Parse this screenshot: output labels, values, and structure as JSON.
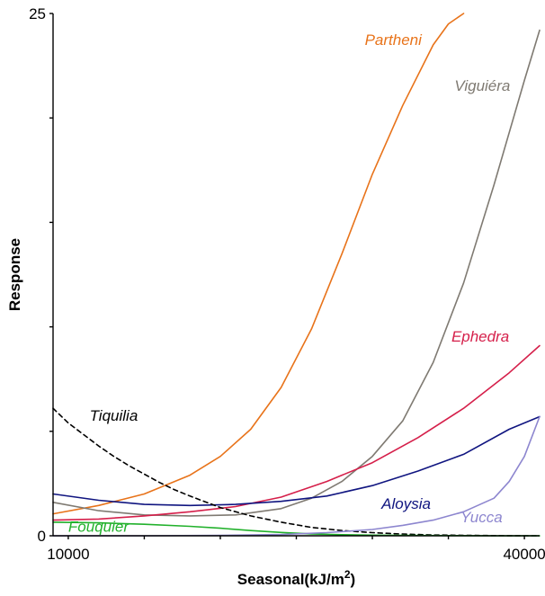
{
  "chart_data": {
    "type": "line",
    "title": "",
    "xlabel": "Seasonal(kJ/m",
    "xlabel_sup": "2",
    "xlabel_suffix": ")",
    "ylabel": "Response",
    "xlim": [
      9000,
      41000
    ],
    "ylim": [
      0,
      25
    ],
    "x_tick_labels": [
      {
        "value": 10000,
        "label": "10000"
      },
      {
        "value": 40000,
        "label": "40000"
      }
    ],
    "x_minor_ticks": [
      15000,
      20000,
      25000,
      30000,
      35000
    ],
    "y_tick_labels": [
      {
        "value": 0,
        "label": "0"
      },
      {
        "value": 25,
        "label": "25"
      }
    ],
    "y_minor_ticks": [
      5,
      10,
      15,
      20
    ],
    "grid": false,
    "legend": "none",
    "series": [
      {
        "name": "Partheni",
        "color": "#e8731a",
        "dash": false,
        "x": [
          9000,
          12000,
          15000,
          18000,
          20000,
          22000,
          24000,
          26000,
          28000,
          30000,
          32000,
          34000,
          35000,
          36000
        ],
        "y": [
          1.05,
          1.45,
          2.0,
          2.9,
          3.8,
          5.1,
          7.1,
          9.9,
          13.5,
          17.3,
          20.6,
          23.5,
          24.5,
          25.0
        ]
      },
      {
        "name": "Viguiéra",
        "color": "#7f7a72",
        "dash": false,
        "x": [
          9000,
          12000,
          15000,
          18000,
          21000,
          24000,
          26000,
          28000,
          30000,
          32000,
          34000,
          36000,
          38000,
          40000,
          41000
        ],
        "y": [
          1.6,
          1.2,
          1.0,
          0.95,
          1.0,
          1.3,
          1.8,
          2.6,
          3.8,
          5.5,
          8.3,
          12.1,
          16.8,
          21.8,
          24.2
        ]
      },
      {
        "name": "Ephedra",
        "color": "#d51f4a",
        "dash": false,
        "x": [
          9000,
          12000,
          15000,
          18000,
          21000,
          24000,
          27000,
          30000,
          33000,
          36000,
          39000,
          41000
        ],
        "y": [
          0.75,
          0.8,
          0.95,
          1.15,
          1.4,
          1.85,
          2.6,
          3.5,
          4.7,
          6.1,
          7.8,
          9.1
        ]
      },
      {
        "name": "Aloysia",
        "color": "#101580",
        "dash": false,
        "x": [
          9000,
          12000,
          15000,
          18000,
          21000,
          24000,
          27000,
          30000,
          33000,
          36000,
          39000,
          41000
        ],
        "y": [
          2.0,
          1.7,
          1.5,
          1.45,
          1.5,
          1.65,
          1.9,
          2.4,
          3.1,
          3.9,
          5.1,
          5.7
        ]
      },
      {
        "name": "Tiquilia",
        "color": "#000000",
        "dash": true,
        "x": [
          9000,
          10000,
          11000,
          12000,
          13000,
          14000,
          15000,
          16000,
          17000,
          18000,
          20000,
          22000,
          24000,
          26000,
          28000,
          30000,
          32000,
          34000,
          36000,
          38000,
          40000,
          41000
        ],
        "y": [
          6.1,
          5.4,
          4.85,
          4.3,
          3.8,
          3.35,
          2.95,
          2.55,
          2.2,
          1.9,
          1.35,
          0.95,
          0.65,
          0.4,
          0.25,
          0.15,
          0.08,
          0.04,
          0.02,
          0.01,
          0.0,
          0.0
        ]
      },
      {
        "name": "Fouquier",
        "color": "#22b12c",
        "dash": false,
        "x": [
          9000,
          12000,
          15000,
          18000,
          20000,
          22000,
          24000,
          26000,
          28000,
          30000,
          32000,
          35000,
          38000,
          41000
        ],
        "y": [
          0.65,
          0.62,
          0.55,
          0.45,
          0.36,
          0.25,
          0.16,
          0.09,
          0.05,
          0.03,
          0.02,
          0.01,
          0.0,
          0.0
        ]
      },
      {
        "name": "Yucca",
        "color": "#8d86cf",
        "dash": false,
        "x": [
          9000,
          15000,
          20000,
          24000,
          27000,
          30000,
          32000,
          34000,
          36000,
          38000,
          39000,
          40000,
          41000
        ],
        "y": [
          0.0,
          0.0,
          0.02,
          0.06,
          0.15,
          0.3,
          0.5,
          0.75,
          1.15,
          1.8,
          2.6,
          3.8,
          5.7
        ]
      }
    ],
    "labels": [
      {
        "series": "Partheni",
        "text": "Partheni",
        "x": 29500,
        "y": 23.5
      },
      {
        "series": "Viguiéra",
        "text": "Viguiéra",
        "x": 35400,
        "y": 21.3
      },
      {
        "series": "Ephedra",
        "text": "Ephedra",
        "x": 35200,
        "y": 9.3
      },
      {
        "series": "Tiquilia",
        "text": "Tiquilia",
        "x": 11400,
        "y": 5.5
      },
      {
        "series": "Aloysia",
        "text": "Aloysia",
        "x": 30600,
        "y": 1.3
      },
      {
        "series": "Yucca",
        "text": "Yucca",
        "x": 35800,
        "y": 0.65
      },
      {
        "series": "Fouquier",
        "text": "Fouquier",
        "x": 10000,
        "y": 0.2
      }
    ]
  }
}
